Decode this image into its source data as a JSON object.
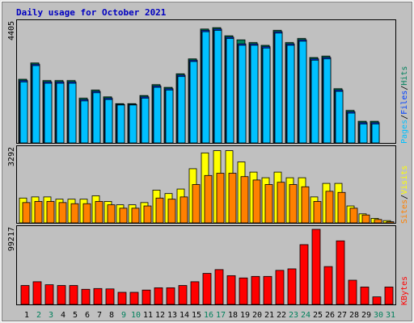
{
  "title": "Daily usage for October 2021",
  "colors": {
    "title": "#0000c0",
    "background": "#c0c0c0",
    "hits": "#00805c",
    "files": "#0040ff",
    "pages": "#00c0ff",
    "visits": "#ffff00",
    "sites": "#ff8000",
    "kbytes": "#ff0000",
    "weekend_day": "#00805c",
    "weekday": "#000000"
  },
  "legends": {
    "top": [
      {
        "text": "Pages",
        "color_key": "pages"
      },
      {
        "text": "/",
        "color_key": "weekday"
      },
      {
        "text": "Files",
        "color_key": "files"
      },
      {
        "text": "/",
        "color_key": "weekday"
      },
      {
        "text": "Hits",
        "color_key": "hits"
      }
    ],
    "middle": [
      {
        "text": "Sites",
        "color_key": "sites"
      },
      {
        "text": "/",
        "color_key": "weekday"
      },
      {
        "text": "Visits",
        "color_key": "visits"
      }
    ],
    "bottom": [
      {
        "text": "KBytes",
        "color_key": "kbytes"
      }
    ]
  },
  "chart_data": [
    {
      "type": "bar",
      "name": "hits-files-pages",
      "ylabel": "4405",
      "ylim": [
        0,
        4405
      ],
      "categories": [
        "1",
        "2",
        "3",
        "4",
        "5",
        "6",
        "7",
        "8",
        "9",
        "10",
        "11",
        "12",
        "13",
        "14",
        "15",
        "16",
        "17",
        "18",
        "19",
        "20",
        "21",
        "22",
        "23",
        "24",
        "25",
        "26",
        "27",
        "28",
        "29",
        "30",
        "31"
      ],
      "weekend": [
        2,
        3,
        9,
        10,
        16,
        17,
        23,
        24,
        30,
        31
      ],
      "series": [
        {
          "name": "Hits",
          "values": [
            2350,
            2950,
            2300,
            2300,
            2300,
            1650,
            1950,
            1700,
            1450,
            1450,
            1750,
            2150,
            2050,
            2550,
            3100,
            4200,
            4250,
            3950,
            3800,
            3700,
            3600,
            4150,
            3700,
            3850,
            3150,
            3200,
            2000,
            1200,
            800,
            800,
            0
          ]
        },
        {
          "name": "Files",
          "values": [
            2300,
            2900,
            2250,
            2250,
            2250,
            1600,
            1900,
            1650,
            1420,
            1420,
            1700,
            2100,
            2000,
            2500,
            3050,
            4150,
            4200,
            3900,
            3650,
            3650,
            3550,
            4100,
            3650,
            3800,
            3100,
            3150,
            1950,
            1150,
            750,
            750,
            0
          ]
        },
        {
          "name": "Pages",
          "values": [
            2250,
            2850,
            2200,
            2200,
            2200,
            1550,
            1850,
            1600,
            1400,
            1400,
            1650,
            2050,
            1950,
            2450,
            3000,
            4100,
            4150,
            3850,
            3600,
            3600,
            3500,
            4050,
            3600,
            3750,
            3050,
            3100,
            1900,
            1100,
            700,
            700,
            0
          ]
        }
      ]
    },
    {
      "type": "bar",
      "name": "visits-sites",
      "ylabel": "3292",
      "ylim": [
        0,
        3292
      ],
      "categories": [
        "1",
        "2",
        "3",
        "4",
        "5",
        "6",
        "7",
        "8",
        "9",
        "10",
        "11",
        "12",
        "13",
        "14",
        "15",
        "16",
        "17",
        "18",
        "19",
        "20",
        "21",
        "22",
        "23",
        "24",
        "25",
        "26",
        "27",
        "28",
        "29",
        "30",
        "31"
      ],
      "series": [
        {
          "name": "Visits",
          "values": [
            1100,
            1150,
            1150,
            1050,
            1050,
            1050,
            1200,
            950,
            800,
            800,
            900,
            1450,
            1300,
            1500,
            2400,
            3100,
            3200,
            3200,
            2700,
            2250,
            2000,
            2250,
            2000,
            2000,
            1150,
            1750,
            1750,
            750,
            400,
            200,
            100
          ]
        },
        {
          "name": "Sites",
          "values": [
            900,
            950,
            950,
            900,
            850,
            850,
            950,
            800,
            650,
            650,
            750,
            1100,
            1050,
            1150,
            1700,
            2100,
            2200,
            2200,
            2050,
            1900,
            1700,
            1800,
            1700,
            1600,
            950,
            1400,
            1350,
            650,
            350,
            150,
            50
          ]
        }
      ]
    },
    {
      "type": "bar",
      "name": "kbytes",
      "ylabel": "99217",
      "ylim": [
        0,
        99217
      ],
      "categories": [
        "1",
        "2",
        "3",
        "4",
        "5",
        "6",
        "7",
        "8",
        "9",
        "10",
        "11",
        "12",
        "13",
        "14",
        "15",
        "16",
        "17",
        "18",
        "19",
        "20",
        "21",
        "22",
        "23",
        "24",
        "25",
        "26",
        "27",
        "28",
        "29",
        "30",
        "31"
      ],
      "series": [
        {
          "name": "KBytes",
          "values": [
            25000,
            30000,
            26000,
            25000,
            25000,
            20000,
            21000,
            20500,
            16000,
            16000,
            19000,
            22000,
            22000,
            25000,
            30000,
            41000,
            46000,
            38000,
            35000,
            37000,
            37000,
            45000,
            47000,
            79000,
            99217,
            50000,
            84000,
            32000,
            23000,
            10000,
            23000
          ]
        }
      ]
    }
  ]
}
